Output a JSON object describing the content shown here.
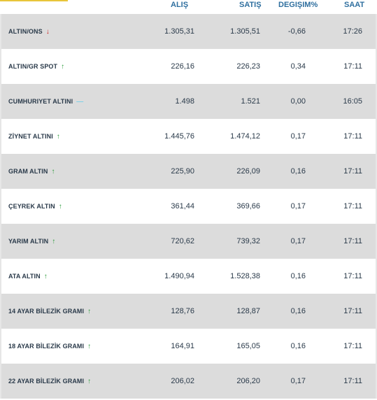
{
  "header": {
    "alis": "ALIŞ",
    "satis": "SATIŞ",
    "degisim": "DEGIŞIM%",
    "saat": "SAAT"
  },
  "rows": [
    {
      "name": "ALTIN/ONS",
      "trend": "down",
      "trend_icon": "arrow-down-icon",
      "alis": "1.305,31",
      "satis": "1.305,51",
      "degisim": "-0,66",
      "saat": "17:26"
    },
    {
      "name": "ALTIN/GR SPOT",
      "trend": "up",
      "trend_icon": "arrow-up-icon",
      "alis": "226,16",
      "satis": "226,23",
      "degisim": "0,34",
      "saat": "17:11"
    },
    {
      "name": "CUMHURIYET ALTINI",
      "trend": "flat",
      "trend_icon": "dash-icon",
      "alis": "1.498",
      "satis": "1.521",
      "degisim": "0,00",
      "saat": "16:05"
    },
    {
      "name": "ZİYNET ALTINI",
      "trend": "up",
      "trend_icon": "arrow-up-icon",
      "alis": "1.445,76",
      "satis": "1.474,12",
      "degisim": "0,17",
      "saat": "17:11"
    },
    {
      "name": "GRAM ALTIN",
      "trend": "up",
      "trend_icon": "arrow-up-icon",
      "alis": "225,90",
      "satis": "226,09",
      "degisim": "0,16",
      "saat": "17:11"
    },
    {
      "name": "ÇEYREK ALTIN",
      "trend": "up",
      "trend_icon": "arrow-up-icon",
      "alis": "361,44",
      "satis": "369,66",
      "degisim": "0,17",
      "saat": "17:11"
    },
    {
      "name": "YARIM ALTIN",
      "trend": "up",
      "trend_icon": "arrow-up-icon",
      "alis": "720,62",
      "satis": "739,32",
      "degisim": "0,17",
      "saat": "17:11"
    },
    {
      "name": "ATA ALTIN",
      "trend": "up",
      "trend_icon": "arrow-up-icon",
      "alis": "1.490,94",
      "satis": "1.528,38",
      "degisim": "0,16",
      "saat": "17:11"
    },
    {
      "name": "14 AYAR BİLEZİK GRAMI",
      "trend": "up",
      "trend_icon": "arrow-up-icon",
      "alis": "128,76",
      "satis": "128,87",
      "degisim": "0,16",
      "saat": "17:11"
    },
    {
      "name": "18 AYAR BİLEZİK GRAMI",
      "trend": "up",
      "trend_icon": "arrow-up-icon",
      "alis": "164,91",
      "satis": "165,05",
      "degisim": "0,16",
      "saat": "17:11"
    },
    {
      "name": "22 AYAR BİLEZİK GRAMI",
      "trend": "up",
      "trend_icon": "arrow-up-icon",
      "alis": "206,02",
      "satis": "206,20",
      "degisim": "0,17",
      "saat": "17:11"
    }
  ],
  "colors": {
    "header_text": "#2f6f9f",
    "row_alt": "#dcdcdc",
    "up": "#2a9a3a",
    "down": "#cc1e1e",
    "flat": "#7fd0e8",
    "accent_line": "#e8c53a"
  }
}
